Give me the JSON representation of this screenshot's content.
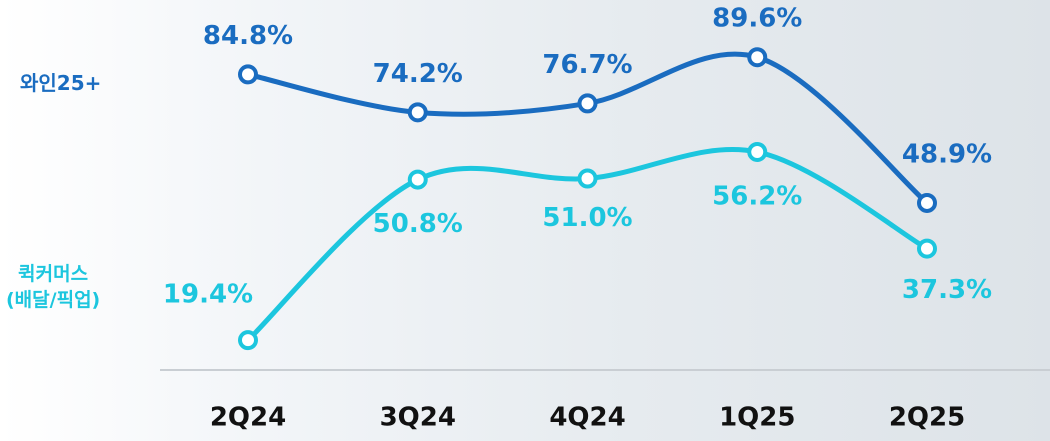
{
  "chart_data": {
    "type": "line",
    "categories": [
      "2Q24",
      "3Q24",
      "4Q24",
      "1Q25",
      "2Q25"
    ],
    "ylim": [
      0,
      100
    ],
    "y2lim": [
      12,
      82
    ],
    "series": [
      {
        "name": "와인25+",
        "color": "#1a6cc0",
        "values": [
          84.8,
          74.2,
          76.7,
          89.6,
          48.9
        ],
        "value_labels": [
          "84.8%",
          "74.2%",
          "76.7%",
          "89.6%",
          "48.9%"
        ]
      },
      {
        "name": "퀵커머스\n(배달/픽업)",
        "color": "#1cc6de",
        "axis": "y2",
        "values": [
          19.4,
          50.8,
          51.0,
          56.2,
          37.3
        ],
        "value_labels": [
          "19.4%",
          "50.8%",
          "51.0%",
          "56.2%",
          "37.3%"
        ]
      }
    ]
  }
}
